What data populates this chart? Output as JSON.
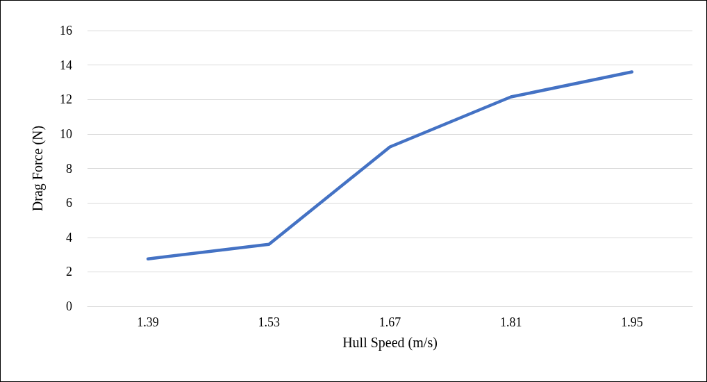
{
  "chart_data": {
    "type": "line",
    "xlabel": "Hull Speed (m/s)",
    "ylabel": "Drag Force (N)",
    "categories": [
      "1.39",
      "1.53",
      "1.67",
      "1.81",
      "1.95"
    ],
    "series": [
      {
        "color": "#4472c4",
        "values": [
          2.75,
          3.6,
          9.25,
          12.15,
          13.6
        ]
      }
    ],
    "ylim": [
      0,
      16
    ],
    "yticks": [
      0,
      2,
      4,
      6,
      8,
      10,
      12,
      14,
      16
    ],
    "grid": "y",
    "marker": "none",
    "line_style": "solid"
  }
}
